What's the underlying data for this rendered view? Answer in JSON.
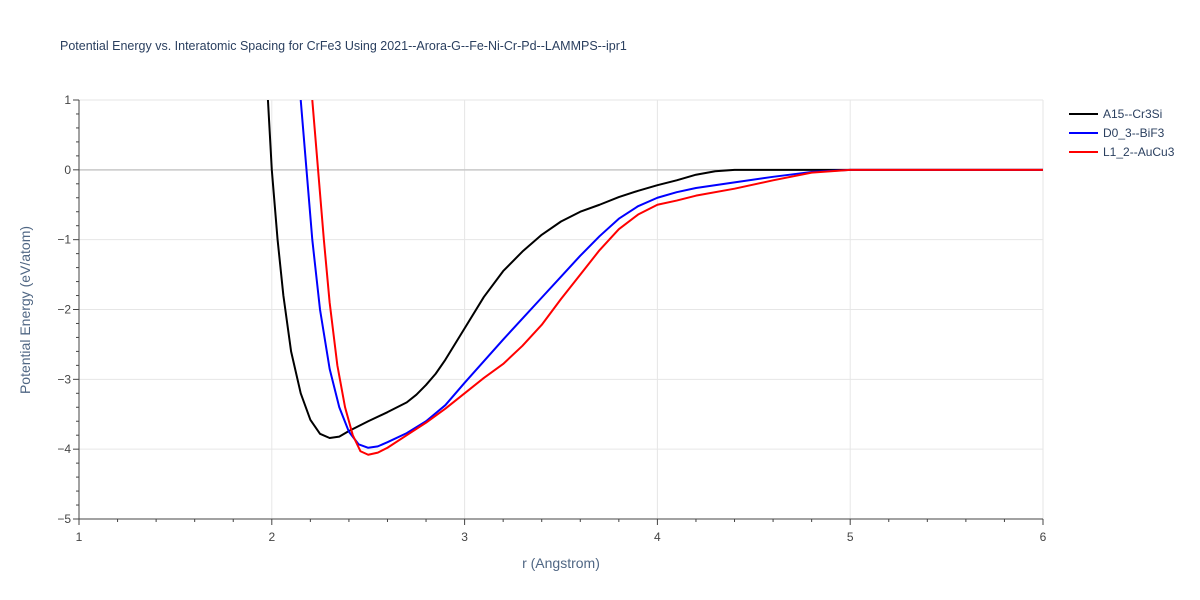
{
  "chart_data": {
    "type": "line",
    "title": "Potential Energy vs. Interatomic Spacing for CrFe3 Using 2021--Arora-G--Fe-Ni-Cr-Pd--LAMMPS--ipr1",
    "xlabel": "r (Angstrom)",
    "ylabel": "Potential Energy (eV/atom)",
    "xlim": [
      1,
      6
    ],
    "ylim": [
      -5,
      1
    ],
    "x_ticks": [
      1,
      2,
      3,
      4,
      5,
      6
    ],
    "x_tick_labels": [
      "1",
      "2",
      "3",
      "4",
      "5",
      "6"
    ],
    "y_ticks": [
      1,
      0,
      -1,
      -2,
      -3,
      -4,
      -5
    ],
    "y_tick_labels": [
      "1",
      "0",
      "−1",
      "−2",
      "−3",
      "−4",
      "−5"
    ],
    "grid": true,
    "legend_position": "top-right",
    "series": [
      {
        "name": "A15--Cr3Si",
        "color": "#000000",
        "points": [
          [
            1.98,
            1.0
          ],
          [
            2.0,
            0.0
          ],
          [
            2.03,
            -1.0
          ],
          [
            2.06,
            -1.8
          ],
          [
            2.1,
            -2.6
          ],
          [
            2.15,
            -3.2
          ],
          [
            2.2,
            -3.58
          ],
          [
            2.25,
            -3.78
          ],
          [
            2.3,
            -3.84
          ],
          [
            2.35,
            -3.82
          ],
          [
            2.4,
            -3.74
          ],
          [
            2.5,
            -3.6
          ],
          [
            2.6,
            -3.47
          ],
          [
            2.7,
            -3.33
          ],
          [
            2.75,
            -3.22
          ],
          [
            2.8,
            -3.08
          ],
          [
            2.85,
            -2.92
          ],
          [
            2.9,
            -2.72
          ],
          [
            3.0,
            -2.27
          ],
          [
            3.1,
            -1.82
          ],
          [
            3.2,
            -1.45
          ],
          [
            3.3,
            -1.17
          ],
          [
            3.4,
            -0.93
          ],
          [
            3.5,
            -0.74
          ],
          [
            3.6,
            -0.6
          ],
          [
            3.7,
            -0.5
          ],
          [
            3.8,
            -0.39
          ],
          [
            3.9,
            -0.3
          ],
          [
            4.0,
            -0.22
          ],
          [
            4.1,
            -0.15
          ],
          [
            4.2,
            -0.07
          ],
          [
            4.3,
            -0.02
          ],
          [
            4.4,
            0.0
          ],
          [
            6.0,
            0.0
          ]
        ]
      },
      {
        "name": "D0_3--BiF3",
        "color": "#0000ff",
        "points": [
          [
            2.15,
            1.0
          ],
          [
            2.18,
            0.0
          ],
          [
            2.21,
            -1.0
          ],
          [
            2.25,
            -2.0
          ],
          [
            2.3,
            -2.85
          ],
          [
            2.35,
            -3.4
          ],
          [
            2.4,
            -3.75
          ],
          [
            2.45,
            -3.93
          ],
          [
            2.5,
            -3.98
          ],
          [
            2.55,
            -3.96
          ],
          [
            2.6,
            -3.9
          ],
          [
            2.7,
            -3.77
          ],
          [
            2.8,
            -3.6
          ],
          [
            2.9,
            -3.37
          ],
          [
            3.0,
            -3.05
          ],
          [
            3.1,
            -2.74
          ],
          [
            3.2,
            -2.43
          ],
          [
            3.3,
            -2.13
          ],
          [
            3.4,
            -1.83
          ],
          [
            3.5,
            -1.53
          ],
          [
            3.6,
            -1.23
          ],
          [
            3.7,
            -0.95
          ],
          [
            3.8,
            -0.7
          ],
          [
            3.9,
            -0.52
          ],
          [
            4.0,
            -0.4
          ],
          [
            4.1,
            -0.32
          ],
          [
            4.2,
            -0.26
          ],
          [
            4.4,
            -0.18
          ],
          [
            4.6,
            -0.1
          ],
          [
            4.8,
            -0.03
          ],
          [
            5.0,
            0.0
          ],
          [
            6.0,
            0.0
          ]
        ]
      },
      {
        "name": "L1_2--AuCu3",
        "color": "#ff0000",
        "points": [
          [
            2.21,
            1.0
          ],
          [
            2.24,
            0.0
          ],
          [
            2.27,
            -1.0
          ],
          [
            2.3,
            -1.9
          ],
          [
            2.34,
            -2.8
          ],
          [
            2.38,
            -3.4
          ],
          [
            2.42,
            -3.8
          ],
          [
            2.46,
            -4.03
          ],
          [
            2.5,
            -4.08
          ],
          [
            2.55,
            -4.05
          ],
          [
            2.6,
            -3.98
          ],
          [
            2.7,
            -3.8
          ],
          [
            2.8,
            -3.62
          ],
          [
            2.9,
            -3.42
          ],
          [
            3.0,
            -3.2
          ],
          [
            3.1,
            -2.98
          ],
          [
            3.2,
            -2.78
          ],
          [
            3.3,
            -2.52
          ],
          [
            3.4,
            -2.22
          ],
          [
            3.5,
            -1.85
          ],
          [
            3.6,
            -1.5
          ],
          [
            3.7,
            -1.15
          ],
          [
            3.8,
            -0.85
          ],
          [
            3.9,
            -0.64
          ],
          [
            4.0,
            -0.5
          ],
          [
            4.1,
            -0.44
          ],
          [
            4.2,
            -0.37
          ],
          [
            4.4,
            -0.27
          ],
          [
            4.6,
            -0.15
          ],
          [
            4.8,
            -0.04
          ],
          [
            5.0,
            0.0
          ],
          [
            6.0,
            0.0
          ]
        ]
      }
    ]
  }
}
